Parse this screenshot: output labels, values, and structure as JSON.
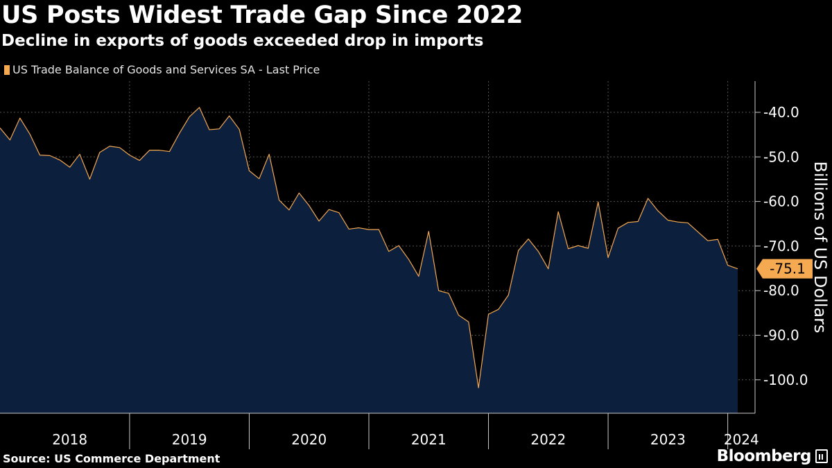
{
  "header": {
    "title": "US Posts Widest Trade Gap Since 2022",
    "subtitle": "Decline in exports of goods exceeded drop in imports"
  },
  "footer": {
    "source": "Source: US Commerce Department",
    "brand": "Bloomberg",
    "brand_icon": "terminal-icon"
  },
  "colors": {
    "background": "#000000",
    "area_fill": "#0c1f3d",
    "line": "#f5a950",
    "grid": "#555555",
    "last_value_tag": "#f5a950"
  },
  "chart_data": {
    "type": "area",
    "title": "US Posts Widest Trade Gap Since 2022",
    "subtitle": "Decline in exports of goods exceeded drop in imports",
    "series": [
      {
        "name": "US Trade Balance of Goods and Services SA - Last Price",
        "start": "2017-12",
        "frequency": "monthly",
        "values": [
          -43.5,
          -46.2,
          -41.3,
          -44.9,
          -49.6,
          -49.7,
          -50.7,
          -52.3,
          -49.4,
          -55.0,
          -49.0,
          -47.6,
          -47.9,
          -49.6,
          -50.8,
          -48.5,
          -48.5,
          -48.8,
          -44.7,
          -41.0,
          -38.9,
          -43.9,
          -43.7,
          -40.8,
          -43.8,
          -53.1,
          -54.9,
          -49.4,
          -59.7,
          -61.9,
          -58.1,
          -60.9,
          -64.4,
          -61.8,
          -62.5,
          -66.2,
          -65.9,
          -66.3,
          -66.3,
          -71.2,
          -69.9,
          -73.0,
          -76.8,
          -66.7,
          -80.0,
          -80.6,
          -85.5,
          -87.0,
          -101.8,
          -85.3,
          -84.2,
          -81.0,
          -71.0,
          -68.4,
          -71.2,
          -75.1,
          -62.3,
          -70.6,
          -69.9,
          -70.5,
          -60.1,
          -72.6,
          -66.0,
          -64.7,
          -64.5,
          -59.3,
          -62.1,
          -64.2,
          -64.6,
          -64.8,
          -66.8,
          -68.8,
          -68.5,
          -74.3,
          -75.1
        ]
      }
    ],
    "x_tick_labels": [
      "2018",
      "2019",
      "2020",
      "2021",
      "2022",
      "2023",
      "2024"
    ],
    "y_ticks": [
      -40.0,
      -50.0,
      -60.0,
      -70.0,
      -80.0,
      -90.0,
      -100.0
    ],
    "y_tick_labels": [
      "-40.0",
      "-50.0",
      "-60.0",
      "-70.0",
      "-80.0",
      "-90.0",
      "-100.0"
    ],
    "ylabel": "Billions of US Dollars",
    "ylim": [
      -107.5,
      -33
    ],
    "last_value_label": "-75.1",
    "grid": true,
    "legend_position": "top-left",
    "y_axis_position": "right"
  }
}
